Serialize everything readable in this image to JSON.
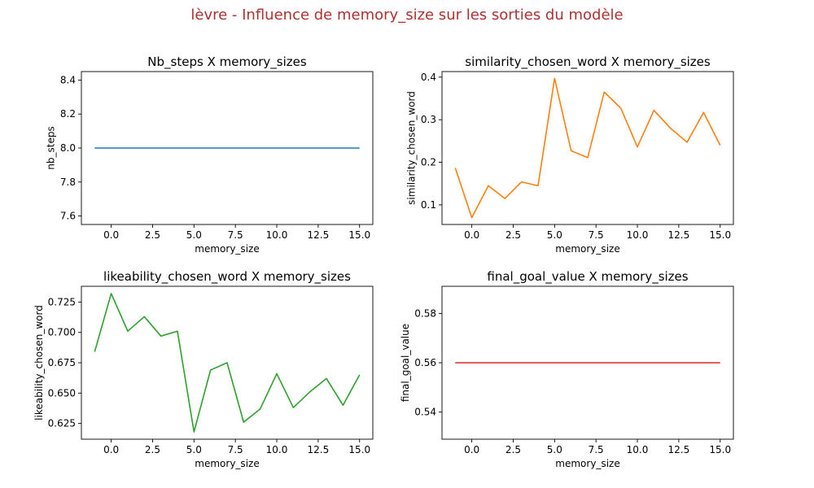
{
  "figure": {
    "suptitle": "lèvre - Influence de memory_size sur les sorties du modèle",
    "suptitle_color": "#b03030"
  },
  "chart_data": [
    {
      "type": "line",
      "title": "Nb_steps X memory_sizes",
      "xlabel": "memory_size",
      "ylabel": "nb_steps",
      "xlim": [
        -1.8,
        15.8
      ],
      "ylim": [
        7.55,
        8.45
      ],
      "xticks": [
        0.0,
        2.5,
        5.0,
        7.5,
        10.0,
        12.5,
        15.0
      ],
      "xtick_labels": [
        "0.0",
        "2.5",
        "5.0",
        "7.5",
        "10.0",
        "12.5",
        "15.0"
      ],
      "yticks": [
        7.6,
        7.8,
        8.0,
        8.2,
        8.4
      ],
      "ytick_labels": [
        "7.6",
        "7.8",
        "8.0",
        "8.2",
        "8.4"
      ],
      "grid": false,
      "series": [
        {
          "color": "#1f77b4",
          "x": [
            -1,
            0,
            1,
            2,
            3,
            4,
            5,
            6,
            7,
            8,
            9,
            10,
            11,
            12,
            13,
            14,
            15
          ],
          "y": [
            8.0,
            8.0,
            8.0,
            8.0,
            8.0,
            8.0,
            8.0,
            8.0,
            8.0,
            8.0,
            8.0,
            8.0,
            8.0,
            8.0,
            8.0,
            8.0,
            8.0
          ]
        }
      ]
    },
    {
      "type": "line",
      "title": "similarity_chosen_word X memory_sizes",
      "xlabel": "memory_size",
      "ylabel": "similarity_chosen_word",
      "xlim": [
        -1.8,
        15.8
      ],
      "ylim": [
        0.054,
        0.413
      ],
      "xticks": [
        0.0,
        2.5,
        5.0,
        7.5,
        10.0,
        12.5,
        15.0
      ],
      "xtick_labels": [
        "0.0",
        "2.5",
        "5.0",
        "7.5",
        "10.0",
        "12.5",
        "15.0"
      ],
      "yticks": [
        0.1,
        0.2,
        0.3,
        0.4
      ],
      "ytick_labels": [
        "0.1",
        "0.2",
        "0.3",
        "0.4"
      ],
      "grid": false,
      "series": [
        {
          "color": "#ff7f0e",
          "x": [
            -1,
            0,
            1,
            2,
            3,
            4,
            5,
            6,
            7,
            8,
            9,
            10,
            11,
            12,
            13,
            14,
            15
          ],
          "y": [
            0.187,
            0.07,
            0.145,
            0.115,
            0.154,
            0.145,
            0.397,
            0.227,
            0.211,
            0.365,
            0.327,
            0.236,
            0.322,
            0.28,
            0.247,
            0.317,
            0.24
          ]
        }
      ]
    },
    {
      "type": "line",
      "title": "likeability_chosen_word X memory_sizes",
      "xlabel": "memory_size",
      "ylabel": "likeability_chosen_word",
      "xlim": [
        -1.8,
        15.8
      ],
      "ylim": [
        0.612,
        0.738
      ],
      "xticks": [
        0.0,
        2.5,
        5.0,
        7.5,
        10.0,
        12.5,
        15.0
      ],
      "xtick_labels": [
        "0.0",
        "2.5",
        "5.0",
        "7.5",
        "10.0",
        "12.5",
        "15.0"
      ],
      "yticks": [
        0.625,
        0.65,
        0.675,
        0.7,
        0.725
      ],
      "ytick_labels": [
        "0.625",
        "0.650",
        "0.675",
        "0.700",
        "0.725"
      ],
      "grid": false,
      "series": [
        {
          "color": "#2ca02c",
          "x": [
            -1,
            0,
            1,
            2,
            3,
            4,
            5,
            6,
            7,
            8,
            9,
            10,
            11,
            12,
            13,
            14,
            15
          ],
          "y": [
            0.684,
            0.732,
            0.701,
            0.713,
            0.697,
            0.701,
            0.618,
            0.669,
            0.675,
            0.626,
            0.637,
            0.666,
            0.638,
            0.651,
            0.662,
            0.64,
            0.665
          ]
        }
      ]
    },
    {
      "type": "line",
      "title": "final_goal_value X memory_sizes",
      "xlabel": "memory_size",
      "ylabel": "final_goal_value",
      "xlim": [
        -1.8,
        15.8
      ],
      "ylim": [
        0.529,
        0.591
      ],
      "xticks": [
        0.0,
        2.5,
        5.0,
        7.5,
        10.0,
        12.5,
        15.0
      ],
      "xtick_labels": [
        "0.0",
        "2.5",
        "5.0",
        "7.5",
        "10.0",
        "12.5",
        "15.0"
      ],
      "yticks": [
        0.54,
        0.56,
        0.58
      ],
      "ytick_labels": [
        "0.54",
        "0.56",
        "0.58"
      ],
      "grid": false,
      "series": [
        {
          "color": "#d62728",
          "x": [
            -1,
            0,
            1,
            2,
            3,
            4,
            5,
            6,
            7,
            8,
            9,
            10,
            11,
            12,
            13,
            14,
            15
          ],
          "y": [
            0.56,
            0.56,
            0.56,
            0.56,
            0.56,
            0.56,
            0.56,
            0.56,
            0.56,
            0.56,
            0.56,
            0.56,
            0.56,
            0.56,
            0.56,
            0.56,
            0.56
          ]
        }
      ]
    }
  ]
}
